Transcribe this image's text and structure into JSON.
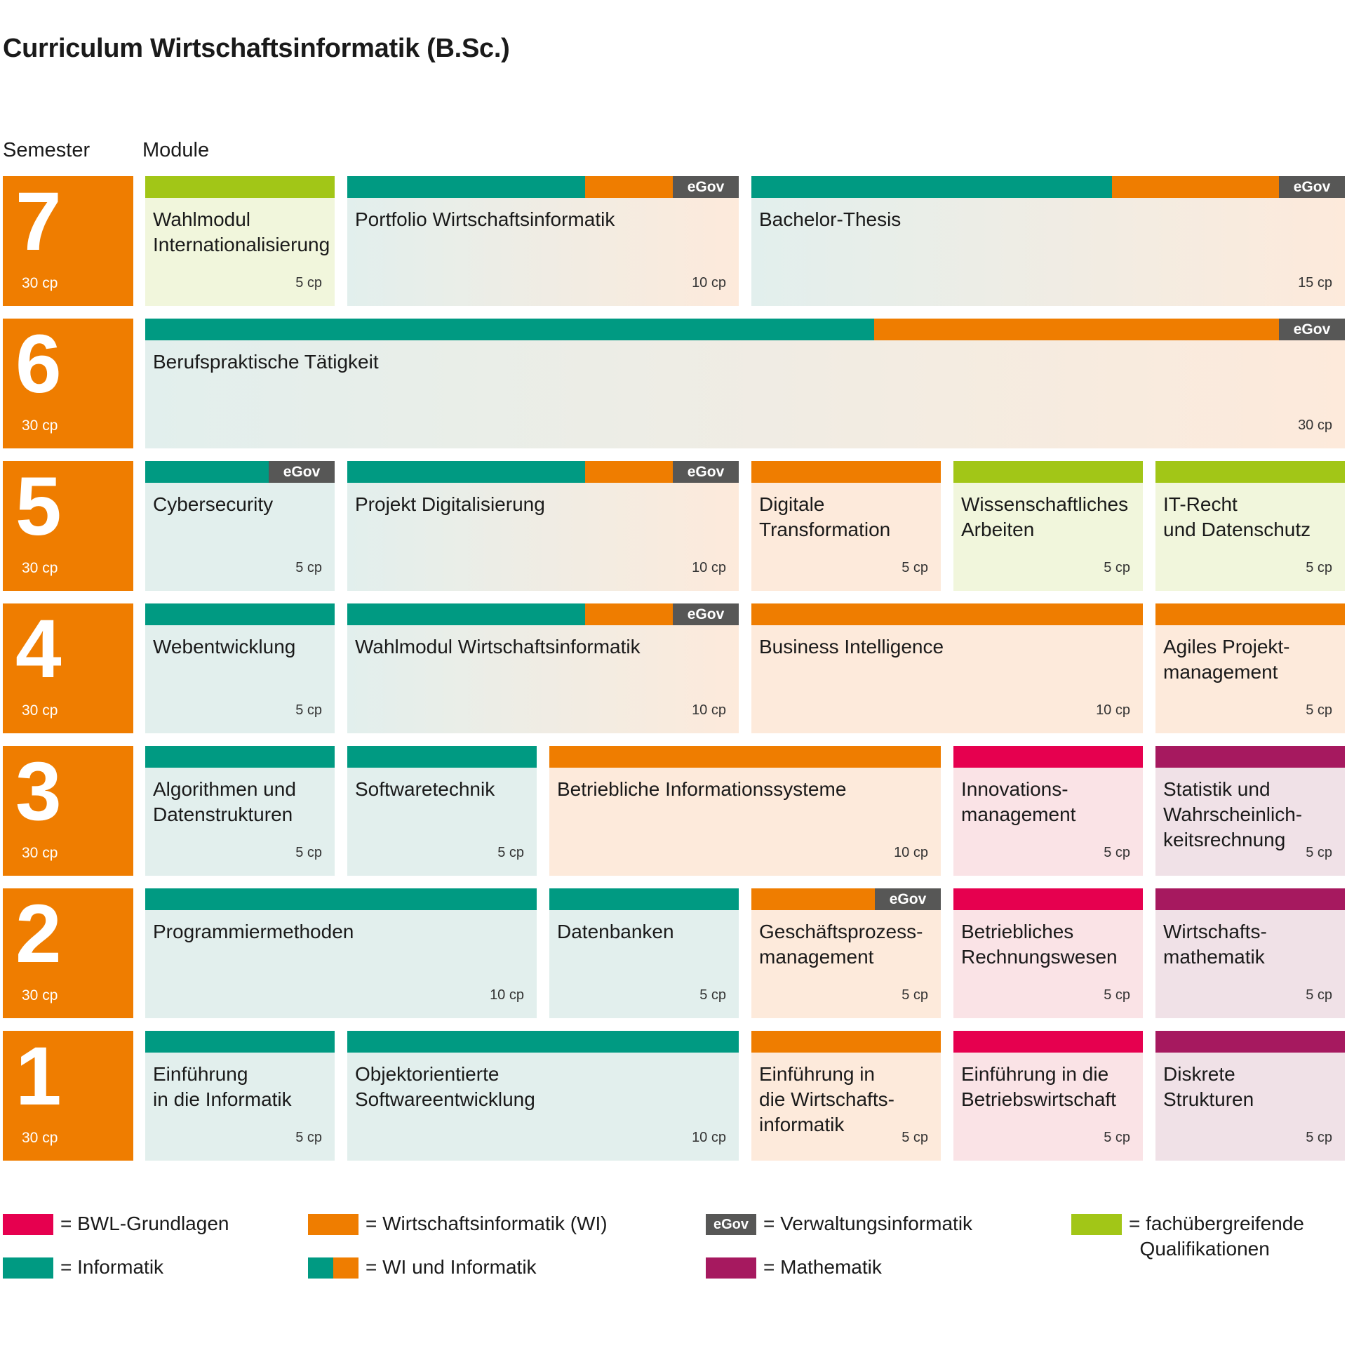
{
  "title": "Curriculum Wirtschaftsinformatik (B.Sc.)",
  "headers": {
    "semester": "Semester",
    "module": "Module"
  },
  "colors": {
    "inf": "#009a82",
    "wi": "#ef7d00",
    "bwl": "#e6004f",
    "math": "#a6195f",
    "fach": "#a2c617",
    "egov": "#575756",
    "bg_inf": "#e2efed",
    "bg_wi": "#fdeadb",
    "bg_bwl": "#fae3e6",
    "bg_math": "#f0e1e7",
    "bg_fach": "#f1f6dc"
  },
  "semesters": [
    {
      "number": "7",
      "cp": "30 cp",
      "modules": [
        {
          "name": "Wahlmodul\nInternationalisierung",
          "cp": "5 cp",
          "type": "fach",
          "width": 5,
          "egov": false
        },
        {
          "name": "Portfolio Wirtschaftsinformatik",
          "cp": "10 cp",
          "type": "mixed",
          "width": 10,
          "egov": true,
          "egov_label": "eGov"
        },
        {
          "name": "Bachelor-Thesis",
          "cp": "15 cp",
          "type": "mixed",
          "width": 15,
          "egov": true,
          "egov_label": "eGov"
        }
      ]
    },
    {
      "number": "6",
      "cp": "30 cp",
      "modules": [
        {
          "name": "Berufspraktische Tätigkeit",
          "cp": "30 cp",
          "type": "mixed",
          "width": 30,
          "egov": true,
          "egov_label": "eGov"
        }
      ]
    },
    {
      "number": "5",
      "cp": "30 cp",
      "modules": [
        {
          "name": "Cybersecurity",
          "cp": "5 cp",
          "type": "inf",
          "width": 5,
          "egov": true,
          "egov_label": "eGov"
        },
        {
          "name": "Projekt Digitalisierung",
          "cp": "10 cp",
          "type": "mixed",
          "width": 10,
          "egov": true,
          "egov_label": "eGov"
        },
        {
          "name": "Digitale\nTransformation",
          "cp": "5 cp",
          "type": "wi",
          "width": 5,
          "egov": false
        },
        {
          "name": "Wissenschaftliches\nArbeiten",
          "cp": "5 cp",
          "type": "fach",
          "width": 5,
          "egov": false
        },
        {
          "name": "IT-Recht\nund Datenschutz",
          "cp": "5 cp",
          "type": "fach",
          "width": 5,
          "egov": false
        }
      ]
    },
    {
      "number": "4",
      "cp": "30 cp",
      "modules": [
        {
          "name": "Webentwicklung",
          "cp": "5 cp",
          "type": "inf",
          "width": 5,
          "egov": false
        },
        {
          "name": "Wahlmodul Wirtschaftsinformatik",
          "cp": "10 cp",
          "type": "mixed",
          "width": 10,
          "egov": true,
          "egov_label": "eGov"
        },
        {
          "name": "Business Intelligence",
          "cp": "10 cp",
          "type": "wi",
          "width": 10,
          "egov": false
        },
        {
          "name": "Agiles Projekt-\nmanagement",
          "cp": "5 cp",
          "type": "wi",
          "width": 5,
          "egov": false
        }
      ]
    },
    {
      "number": "3",
      "cp": "30 cp",
      "modules": [
        {
          "name": "Algorithmen und\nDatenstrukturen",
          "cp": "5 cp",
          "type": "inf",
          "width": 5,
          "egov": false
        },
        {
          "name": "Softwaretechnik",
          "cp": "5 cp",
          "type": "inf",
          "width": 5,
          "egov": false
        },
        {
          "name": "Betriebliche Informationssysteme",
          "cp": "10 cp",
          "type": "wi",
          "width": 10,
          "egov": false
        },
        {
          "name": "Innovations-\nmanagement",
          "cp": "5 cp",
          "type": "bwl",
          "width": 5,
          "egov": false
        },
        {
          "name": "Statistik und\nWahrscheinlich-\nkeitsrechnung",
          "cp": "5 cp",
          "type": "math",
          "width": 5,
          "egov": false
        }
      ]
    },
    {
      "number": "2",
      "cp": "30 cp",
      "modules": [
        {
          "name": "Programmiermethoden",
          "cp": "10 cp",
          "type": "inf",
          "width": 10,
          "egov": false
        },
        {
          "name": "Datenbanken",
          "cp": "5 cp",
          "type": "inf",
          "width": 5,
          "egov": false
        },
        {
          "name": "Geschäftsprozess-\nmanagement",
          "cp": "5 cp",
          "type": "wi",
          "width": 5,
          "egov": true,
          "egov_label": "eGov"
        },
        {
          "name": "Betriebliches\nRechnungswesen",
          "cp": "5 cp",
          "type": "bwl",
          "width": 5,
          "egov": false
        },
        {
          "name": "Wirtschafts-\nmathematik",
          "cp": "5 cp",
          "type": "math",
          "width": 5,
          "egov": false
        }
      ]
    },
    {
      "number": "1",
      "cp": "30 cp",
      "modules": [
        {
          "name": "Einführung\nin die Informatik",
          "cp": "5 cp",
          "type": "inf",
          "width": 5,
          "egov": false
        },
        {
          "name": "Objektorientierte\nSoftwareentwicklung",
          "cp": "10 cp",
          "type": "inf",
          "width": 10,
          "egov": false
        },
        {
          "name": "Einführung in\ndie Wirtschafts-\ninformatik",
          "cp": "5 cp",
          "type": "wi",
          "width": 5,
          "egov": false
        },
        {
          "name": "Einführung in die\nBetriebswirtschaft",
          "cp": "5 cp",
          "type": "bwl",
          "width": 5,
          "egov": false
        },
        {
          "name": "Diskrete\nStrukturen",
          "cp": "5 cp",
          "type": "math",
          "width": 5,
          "egov": false
        }
      ]
    }
  ],
  "legend": [
    {
      "type": "bwl",
      "label": "= BWL-Grundlagen"
    },
    {
      "type": "inf",
      "label": "= Informatik"
    },
    {
      "type": "wi",
      "label": "= Wirtschaftsinformatik (WI)"
    },
    {
      "type": "mixed",
      "label": "= WI und Informatik"
    },
    {
      "type": "egov",
      "label": "= Verwaltungsinformatik",
      "badge": "eGov"
    },
    {
      "type": "math",
      "label": "= Mathematik"
    },
    {
      "type": "fach",
      "label": "= fachübergreifende\n  Qualifikationen"
    }
  ]
}
